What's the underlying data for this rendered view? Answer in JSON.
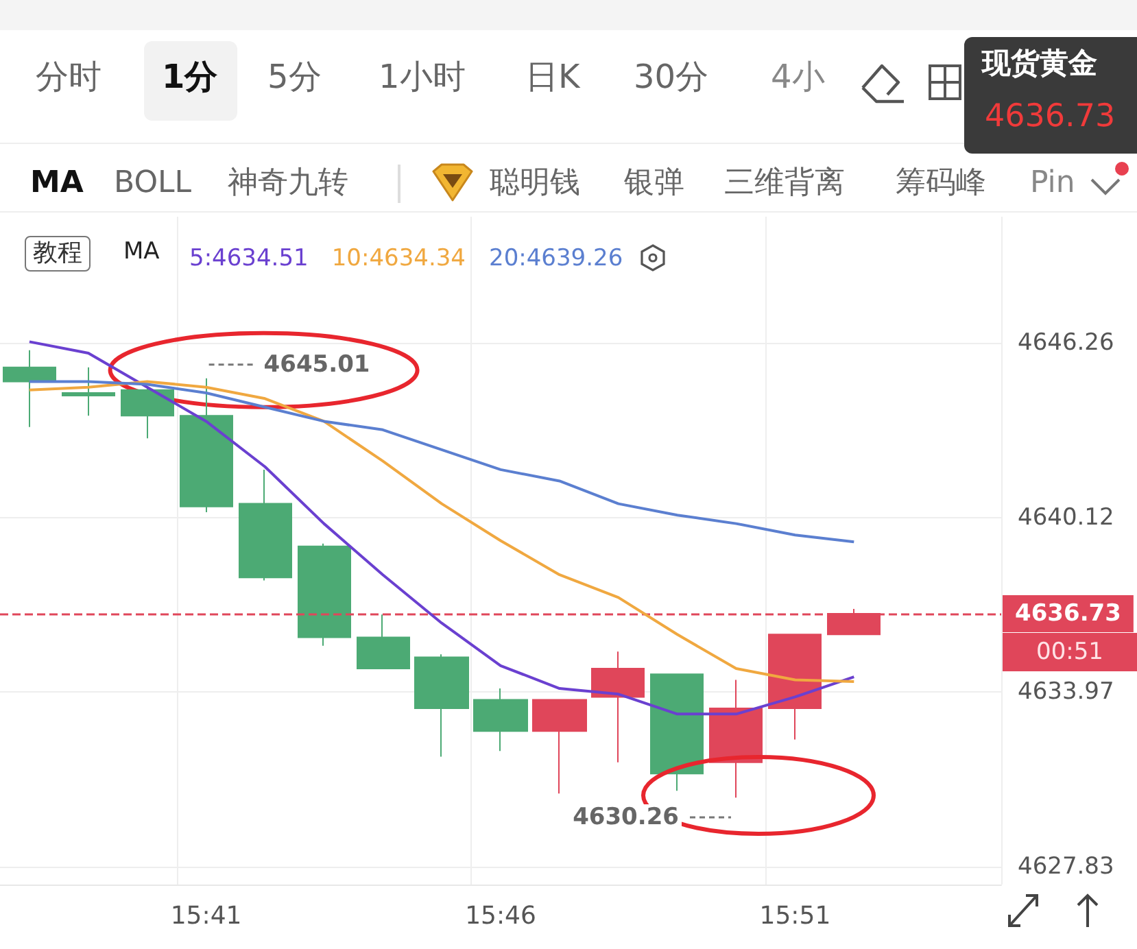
{
  "chart_data": {
    "type": "candlestick",
    "categories": [
      null,
      null,
      null,
      "15:41",
      null,
      null,
      null,
      null,
      "15:46",
      null,
      null,
      null,
      null,
      "15:51",
      null,
      null,
      null
    ],
    "ohlc": [
      [
        4645.4,
        4646.0,
        4643.3,
        4644.9
      ],
      [
        4644.5,
        4645.4,
        4643.7,
        4644.4
      ],
      [
        4644.6,
        4644.7,
        4642.9,
        4643.7
      ],
      [
        4643.7,
        4645.01,
        4640.3,
        4640.5
      ],
      [
        4640.6,
        4641.8,
        4637.9,
        4638.0
      ],
      [
        4639.1,
        4639.2,
        4635.6,
        4635.9
      ],
      [
        4635.9,
        4636.7,
        4634.8,
        4634.8
      ],
      [
        4635.2,
        4635.3,
        4631.7,
        4633.4
      ],
      [
        4633.7,
        4634.1,
        4631.9,
        4632.6
      ],
      [
        4632.6,
        4633.7,
        4630.4,
        4633.7
      ],
      [
        4633.8,
        4635.4,
        4631.5,
        4634.8
      ],
      [
        4634.6,
        4634.6,
        4630.5,
        4631.1
      ],
      [
        4631.5,
        4634.4,
        4630.26,
        4633.4
      ],
      [
        4633.4,
        4636.0,
        4632.3,
        4636.0
      ],
      [
        4636.0,
        4636.9,
        4636.0,
        4636.73
      ],
      null,
      null
    ],
    "colors": [
      "#4caa74",
      "#4caa74",
      "#4caa74",
      "#4caa74",
      "#4caa74",
      "#4caa74",
      "#4caa74",
      "#4caa74",
      "#4caa74",
      "#e0465a",
      "#e0465a",
      "#4caa74",
      "#e0465a",
      "#e0465a",
      "#e0465a",
      null,
      null
    ],
    "series": [
      {
        "type": "line",
        "name": "5:4634.51",
        "color": "#6a40d0",
        "values": [
          4646.3,
          4645.9,
          4644.7,
          4643.5,
          4641.9,
          4639.9,
          4638.1,
          4636.4,
          4634.9,
          4634.1,
          4633.9,
          4633.2,
          4633.2,
          4633.8,
          4634.51,
          null,
          null
        ]
      },
      {
        "type": "line",
        "name": "10:4634.34",
        "color": "#f0a840",
        "values": [
          4644.6,
          4644.7,
          4644.9,
          4644.7,
          4644.3,
          4643.5,
          4642.1,
          4640.6,
          4639.3,
          4638.1,
          4637.3,
          4636.0,
          4634.8,
          4634.4,
          4634.34,
          null,
          null
        ]
      },
      {
        "type": "line",
        "name": "20:4639.26",
        "color": "#5b7fd0",
        "values": [
          4644.9,
          4644.9,
          4644.8,
          4644.5,
          4644.0,
          4643.5,
          4643.2,
          4642.5,
          4641.8,
          4641.4,
          4640.6,
          4640.2,
          4639.9,
          4639.5,
          4639.26,
          null,
          null
        ]
      }
    ],
    "legend_title": "MA",
    "legend": "top",
    "ylim": [
      4627.2,
      4650.7
    ],
    "yticks": [
      4627.83,
      4633.97,
      4640.12,
      4646.26
    ],
    "grid": true,
    "marker": "none",
    "ref_lines": [
      {
        "axis": "y",
        "value": 4636.73,
        "label": "4636.73",
        "color": "#e0465a",
        "line_style": "dashed"
      }
    ],
    "annotations": [
      "分时",
      "1分",
      "5分",
      "1小时",
      "日K",
      "30分",
      "4小",
      "现货黄金",
      "4636.73",
      "MA",
      "BOLL",
      "神奇九转",
      "聪明钱",
      "银弹",
      "三维背离",
      "筹码峰",
      "Pin",
      "教程",
      "00:51",
      {
        "text": "4645.01",
        "x": "15:41",
        "y": 4645.01
      },
      "4630.26"
    ]
  }
}
